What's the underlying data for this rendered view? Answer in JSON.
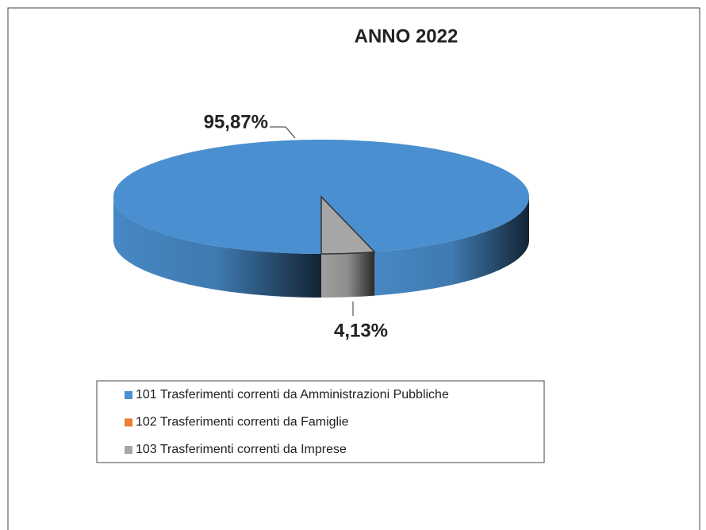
{
  "chart_data": {
    "type": "pie",
    "title": "ANNO 2022",
    "categories": [
      "101 Trasferimenti correnti da Amministrazioni Pubbliche",
      "102 Trasferimenti correnti da Famiglie",
      "103 Trasferimenti correnti da Imprese"
    ],
    "values": [
      95.87,
      0,
      4.13
    ],
    "value_labels": [
      "95,87%",
      null,
      "4,13%"
    ],
    "colors": [
      "#4a8fcf",
      "#ed7d31",
      "#a6a6a6"
    ],
    "legend": "bottom"
  }
}
